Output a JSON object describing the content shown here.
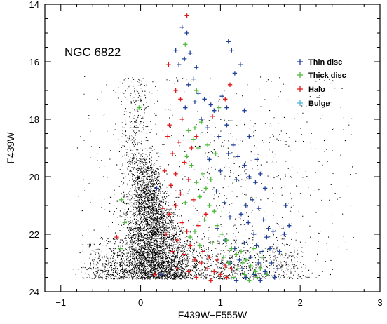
{
  "chart_data": {
    "type": "scatter",
    "title": "",
    "annotation": "NGC 6822",
    "xlabel": "F439W−F555W",
    "ylabel": "F439W",
    "xlim": [
      -1.2,
      3.0
    ],
    "ylim": [
      24.0,
      14.0
    ],
    "y_inverted": true,
    "xticks": [
      -1,
      0,
      1,
      2,
      3
    ],
    "yticks": [
      14,
      16,
      18,
      20,
      22,
      24
    ],
    "grid": false,
    "legend_position": "top-right",
    "colors": {
      "Thin disc": "#1e3f9a",
      "Thick disc": "#4cbb3a",
      "Halo": "#e01818",
      "Bulge": "#4fb4de",
      "background_stars": "#000000"
    },
    "series": [
      {
        "name": "Thin disc",
        "marker": "plus",
        "points": [
          [
            0.52,
            14.8
          ],
          [
            0.58,
            15.0
          ],
          [
            0.44,
            15.6
          ],
          [
            0.62,
            15.7
          ],
          [
            0.55,
            15.9
          ],
          [
            0.48,
            16.1
          ],
          [
            0.7,
            16.2
          ],
          [
            0.66,
            16.6
          ],
          [
            0.6,
            16.8
          ],
          [
            0.72,
            17.1
          ],
          [
            0.8,
            17.3
          ],
          [
            0.68,
            17.4
          ],
          [
            0.56,
            17.6
          ],
          [
            0.88,
            17.5
          ],
          [
            0.92,
            17.7
          ],
          [
            1.02,
            17.2
          ],
          [
            1.08,
            17.6
          ],
          [
            1.18,
            16.4
          ],
          [
            1.1,
            15.3
          ],
          [
            1.14,
            15.6
          ],
          [
            1.25,
            16.1
          ],
          [
            0.76,
            18.0
          ],
          [
            0.84,
            18.3
          ],
          [
            0.98,
            18.6
          ],
          [
            1.08,
            18.2
          ],
          [
            1.16,
            18.9
          ],
          [
            1.22,
            19.3
          ],
          [
            1.3,
            19.6
          ],
          [
            1.36,
            20.0
          ],
          [
            1.44,
            20.2
          ],
          [
            1.5,
            19.9
          ],
          [
            1.56,
            20.4
          ],
          [
            1.4,
            20.8
          ],
          [
            1.32,
            21.0
          ],
          [
            1.26,
            21.3
          ],
          [
            1.48,
            21.1
          ],
          [
            1.54,
            21.5
          ],
          [
            1.6,
            21.8
          ],
          [
            1.35,
            21.6
          ],
          [
            1.42,
            22.0
          ],
          [
            1.58,
            22.1
          ],
          [
            1.66,
            21.9
          ],
          [
            1.3,
            22.3
          ],
          [
            1.45,
            22.4
          ],
          [
            1.52,
            22.6
          ],
          [
            1.62,
            22.5
          ],
          [
            1.38,
            22.8
          ],
          [
            1.24,
            22.9
          ],
          [
            1.28,
            23.2
          ],
          [
            1.48,
            23.0
          ],
          [
            1.56,
            23.3
          ],
          [
            1.42,
            23.4
          ],
          [
            1.32,
            23.5
          ],
          [
            1.2,
            23.6
          ],
          [
            1.64,
            23.0
          ],
          [
            1.72,
            23.2
          ],
          [
            0.95,
            20.5
          ],
          [
            1.05,
            20.9
          ],
          [
            1.12,
            21.4
          ],
          [
            1.0,
            19.8
          ],
          [
            0.86,
            19.4
          ],
          [
            1.2,
            20.1
          ],
          [
            1.82,
            21.0
          ],
          [
            1.8,
            22.0
          ],
          [
            0.2,
            20.4
          ],
          [
            0.25,
            23.4
          ],
          [
            1.74,
            22.6
          ],
          [
            1.68,
            23.5
          ],
          [
            1.36,
            18.6
          ],
          [
            1.3,
            17.7
          ],
          [
            0.96,
            21.8
          ],
          [
            1.06,
            22.2
          ],
          [
            1.18,
            22.5
          ],
          [
            1.12,
            23.0
          ],
          [
            1.5,
            23.6
          ],
          [
            1.86,
            21.7
          ],
          [
            1.46,
            19.4
          ],
          [
            1.1,
            19.2
          ]
        ]
      },
      {
        "name": "Thick disc",
        "marker": "plus",
        "points": [
          [
            0.56,
            15.4
          ],
          [
            0.7,
            17.0
          ],
          [
            0.6,
            18.4
          ],
          [
            0.66,
            18.7
          ],
          [
            0.72,
            19.0
          ],
          [
            0.58,
            19.3
          ],
          [
            0.64,
            19.6
          ],
          [
            0.78,
            19.9
          ],
          [
            0.7,
            20.2
          ],
          [
            0.82,
            20.4
          ],
          [
            0.74,
            20.7
          ],
          [
            0.86,
            21.0
          ],
          [
            0.92,
            21.2
          ],
          [
            0.8,
            21.5
          ],
          [
            0.96,
            21.7
          ],
          [
            1.02,
            22.0
          ],
          [
            1.08,
            22.2
          ],
          [
            0.9,
            22.3
          ],
          [
            1.14,
            22.5
          ],
          [
            1.2,
            22.7
          ],
          [
            1.26,
            22.6
          ],
          [
            1.32,
            22.9
          ],
          [
            1.38,
            23.1
          ],
          [
            1.22,
            23.2
          ],
          [
            1.3,
            23.4
          ],
          [
            1.44,
            23.3
          ],
          [
            1.16,
            23.5
          ],
          [
            1.36,
            23.6
          ],
          [
            1.5,
            23.2
          ],
          [
            0.84,
            18.9
          ],
          [
            0.76,
            18.1
          ],
          [
            0.98,
            17.6
          ],
          [
            -0.02,
            17.6
          ],
          [
            -0.24,
            20.8
          ],
          [
            -0.2,
            21.6
          ],
          [
            -0.25,
            22.5
          ],
          [
            0.68,
            21.9
          ],
          [
            0.74,
            22.4
          ],
          [
            0.62,
            22.1
          ],
          [
            1.42,
            22.5
          ],
          [
            1.52,
            22.8
          ],
          [
            1.1,
            23.0
          ],
          [
            1.04,
            22.8
          ],
          [
            0.88,
            20.1
          ],
          [
            0.94,
            19.2
          ],
          [
            0.68,
            18.3
          ],
          [
            1.28,
            23.0
          ],
          [
            1.46,
            23.5
          ],
          [
            1.58,
            23.4
          ],
          [
            0.56,
            20.9
          ]
        ]
      },
      {
        "name": "Halo",
        "marker": "plus",
        "points": [
          [
            0.58,
            14.4
          ],
          [
            0.35,
            16.1
          ],
          [
            0.44,
            17.0
          ],
          [
            0.5,
            17.3
          ],
          [
            0.36,
            18.2
          ],
          [
            0.48,
            18.8
          ],
          [
            0.4,
            19.2
          ],
          [
            0.55,
            19.5
          ],
          [
            0.44,
            19.9
          ],
          [
            0.38,
            20.3
          ],
          [
            0.5,
            20.6
          ],
          [
            0.44,
            21.0
          ],
          [
            0.36,
            21.3
          ],
          [
            0.52,
            21.6
          ],
          [
            0.58,
            21.9
          ],
          [
            0.46,
            22.2
          ],
          [
            0.62,
            22.4
          ],
          [
            0.54,
            22.7
          ],
          [
            0.68,
            22.9
          ],
          [
            0.76,
            23.0
          ],
          [
            0.84,
            23.2
          ],
          [
            0.92,
            23.3
          ],
          [
            1.0,
            23.4
          ],
          [
            1.08,
            23.5
          ],
          [
            0.88,
            23.6
          ],
          [
            0.7,
            23.5
          ],
          [
            0.6,
            23.3
          ],
          [
            0.78,
            22.6
          ],
          [
            0.86,
            22.8
          ],
          [
            0.96,
            22.9
          ],
          [
            1.06,
            23.1
          ],
          [
            1.14,
            23.2
          ],
          [
            0.72,
            21.7
          ],
          [
            0.66,
            20.8
          ],
          [
            0.6,
            20.1
          ],
          [
            0.64,
            19.0
          ],
          [
            0.3,
            19.8
          ],
          [
            0.28,
            21.1
          ],
          [
            0.32,
            22.0
          ],
          [
            0.4,
            22.6
          ],
          [
            0.18,
            23.4
          ],
          [
            -0.3,
            22.1
          ],
          [
            0.9,
            17.9
          ],
          [
            1.06,
            17.3
          ],
          [
            1.12,
            16.8
          ],
          [
            0.7,
            18.6
          ],
          [
            0.34,
            18.6
          ],
          [
            0.46,
            23.2
          ],
          [
            0.82,
            21.3
          ],
          [
            0.52,
            18.0
          ]
        ]
      },
      {
        "name": "Bulge",
        "marker": "plus",
        "points": []
      }
    ]
  },
  "legend": {
    "items": [
      {
        "label": "Thin disc",
        "color": "#1e3f9a"
      },
      {
        "label": "Thick disc",
        "color": "#4cbb3a"
      },
      {
        "label": "Halo",
        "color": "#e01818"
      },
      {
        "label": "Bulge",
        "color": "#4fb4de"
      }
    ]
  },
  "axes": {
    "xlabel": "F439W−F555W",
    "ylabel": "F439W",
    "xtick_labels": [
      "−1",
      "0",
      "1",
      "2",
      "3"
    ],
    "ytick_labels": [
      "14",
      "16",
      "18",
      "20",
      "22",
      "24"
    ]
  }
}
